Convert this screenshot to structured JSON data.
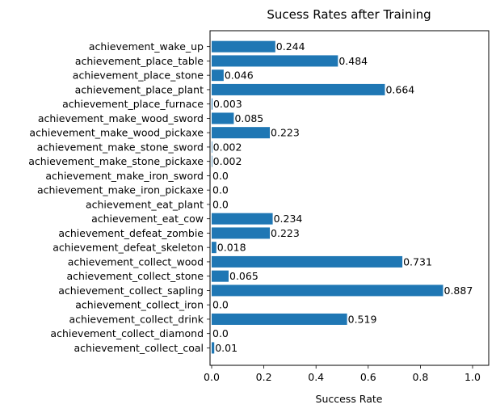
{
  "chart_data": {
    "type": "bar",
    "orientation": "horizontal",
    "title": "Sucess Rates after Training",
    "xlabel": "Success Rate",
    "ylabel": "",
    "xlim": [
      0,
      1.065
    ],
    "xticks": [
      "0.0",
      "0.2",
      "0.4",
      "0.6",
      "0.8",
      "1.0"
    ],
    "grid": false,
    "legend": "none",
    "bar_color": "#1f77b4",
    "categories": [
      "achievement_collect_coal",
      "achievement_collect_diamond",
      "achievement_collect_drink",
      "achievement_collect_iron",
      "achievement_collect_sapling",
      "achievement_collect_stone",
      "achievement_collect_wood",
      "achievement_defeat_skeleton",
      "achievement_defeat_zombie",
      "achievement_eat_cow",
      "achievement_eat_plant",
      "achievement_make_iron_pickaxe",
      "achievement_make_iron_sword",
      "achievement_make_stone_pickaxe",
      "achievement_make_stone_sword",
      "achievement_make_wood_pickaxe",
      "achievement_make_wood_sword",
      "achievement_place_furnace",
      "achievement_place_plant",
      "achievement_place_stone",
      "achievement_place_table",
      "achievement_wake_up"
    ],
    "values": [
      0.01,
      0.0,
      0.519,
      0.0,
      0.887,
      0.065,
      0.731,
      0.018,
      0.223,
      0.234,
      0.0,
      0.0,
      0.0,
      0.002,
      0.002,
      0.223,
      0.085,
      0.003,
      0.664,
      0.046,
      0.484,
      0.244
    ],
    "value_labels": [
      "0.01",
      "0.0",
      "0.519",
      "0.0",
      "0.887",
      "0.065",
      "0.731",
      "0.018",
      "0.223",
      "0.234",
      "0.0",
      "0.0",
      "0.0",
      "0.002",
      "0.002",
      "0.223",
      "0.085",
      "0.003",
      "0.664",
      "0.046",
      "0.484",
      "0.244"
    ]
  }
}
